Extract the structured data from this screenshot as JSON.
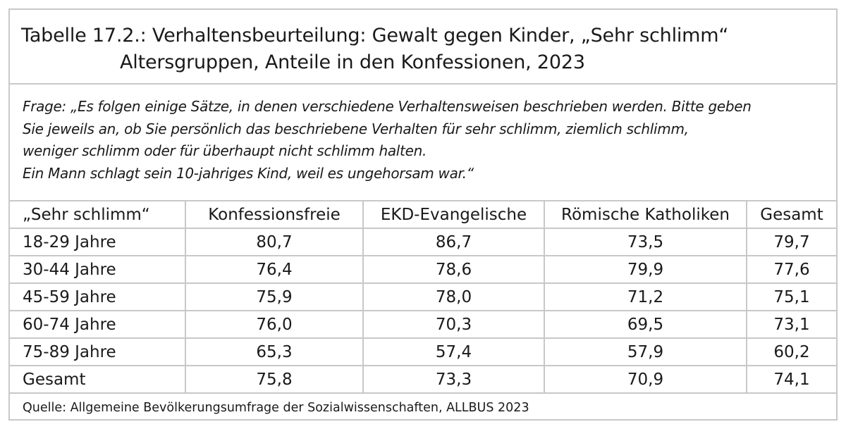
{
  "title": {
    "line1": "Tabelle 17.2.: Verhaltensbeurteilung: Gewalt gegen Kinder, „Sehr schlimm“",
    "line2": "Altersgruppen, Anteile in den Konfessionen, 2023"
  },
  "question": {
    "lines": [
      "Frage: „Es folgen einige Sätze, in denen verschiedene Verhaltensweisen beschrieben werden. Bitte geben",
      "Sie jeweils an, ob Sie persönlich das beschriebene Verhalten für sehr schlimm, ziemlich schlimm,",
      "weniger schlimm oder für überhaupt nicht schlimm halten.",
      "Ein Mann schlagt sein 10-jahriges Kind, weil es ungehorsam war.“"
    ]
  },
  "table": {
    "headers": [
      "„Sehr schlimm“",
      "Konfessionsfreie",
      "EKD-Evangelische",
      "Römische Katholiken",
      "Gesamt"
    ],
    "rows": [
      [
        "18-29 Jahre",
        "80,7",
        "86,7",
        "73,5",
        "79,7"
      ],
      [
        "30-44 Jahre",
        "76,4",
        "78,6",
        "79,9",
        "77,6"
      ],
      [
        "45-59 Jahre",
        "75,9",
        "78,0",
        "71,2",
        "75,1"
      ],
      [
        "60-74 Jahre",
        "76,0",
        "70,3",
        "69,5",
        "73,1"
      ],
      [
        "75-89 Jahre",
        "65,3",
        "57,4",
        "57,9",
        "60,2"
      ],
      [
        "Gesamt",
        "75,8",
        "73,3",
        "70,9",
        "74,1"
      ]
    ]
  },
  "source": "Quelle: Allgemeine Bevölkerungsumfrage der Sozialwissenschaften, ALLBUS 2023"
}
